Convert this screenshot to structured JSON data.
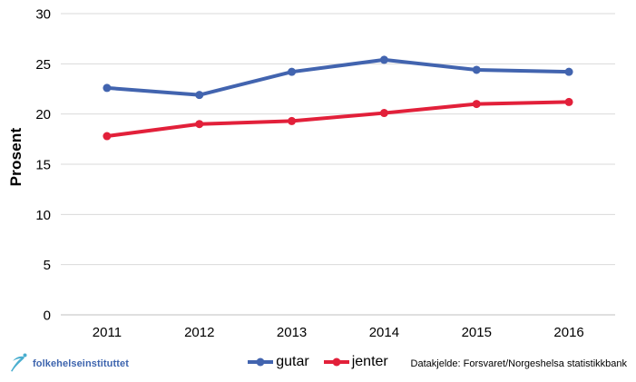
{
  "chart_data": {
    "type": "line",
    "categories": [
      "2011",
      "2012",
      "2013",
      "2014",
      "2015",
      "2016"
    ],
    "series": [
      {
        "name": "gutar",
        "color": "#4264af",
        "values": [
          22.6,
          21.9,
          24.2,
          25.4,
          24.4,
          24.2
        ]
      },
      {
        "name": "jenter",
        "color": "#e2203a",
        "values": [
          17.8,
          19.0,
          19.3,
          20.1,
          21.0,
          21.2
        ]
      }
    ],
    "title": "",
    "xlabel": "",
    "ylabel": "Prosent",
    "ylim": [
      0,
      30
    ],
    "ytick_step": 5,
    "yticks": [
      "0",
      "5",
      "10",
      "15",
      "20",
      "25",
      "30"
    ],
    "grid": "horizontal",
    "gridline_color": "#d9d9d9",
    "baseline_color": "#bfbfbf",
    "legend_position": "bottom"
  },
  "footer": {
    "logo_text": "folkehelseinstituttet",
    "logo_icon": "folkehelseinstituttet-figure-icon",
    "logo_icon_color": "#4aaecf",
    "source": "Datakjelde: Forsvaret/Norgeshelsa statistikkbank"
  }
}
